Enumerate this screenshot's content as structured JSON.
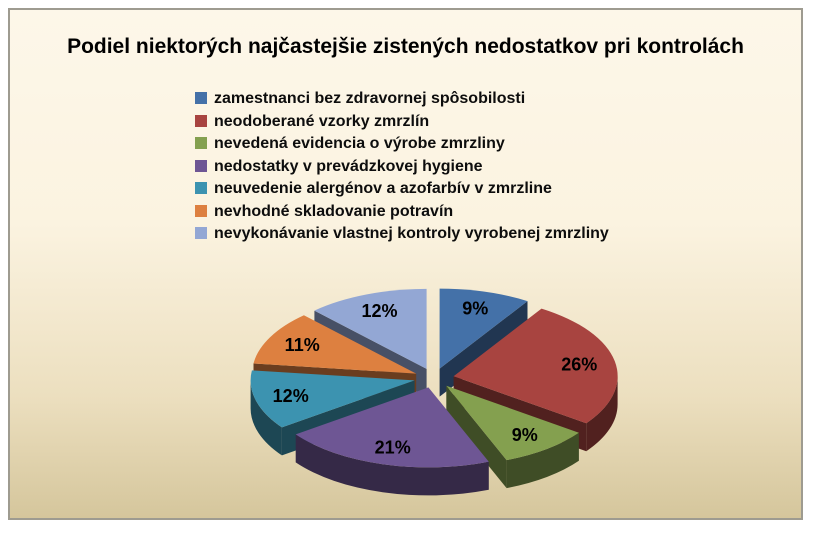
{
  "chart_data": {
    "type": "pie",
    "style": "3d-exploded",
    "title": "Podiel niektorých najčastejšie zistených nedostatkov pri kontrolách",
    "legend_position": "top-left-below-title",
    "slices": [
      {
        "label": "zamestnanci bez zdravornej spôsobilosti",
        "value": 9,
        "pct_label": "9%",
        "color": "#4471A8"
      },
      {
        "label": "neodoberané vzorky zmrzlín",
        "value": 26,
        "pct_label": "26%",
        "color": "#A84440"
      },
      {
        "label": "nevedená evidencia o výrobe zmrzliny",
        "value": 9,
        "pct_label": "9%",
        "color": "#84A04F"
      },
      {
        "label": "nedostatky v prevádzkovej hygiene",
        "value": 21,
        "pct_label": "21%",
        "color": "#6E5694"
      },
      {
        "label": "neuvedenie alergénov a azofarbív v zmrzline",
        "value": 12,
        "pct_label": "12%",
        "color": "#3C93B0"
      },
      {
        "label": "nevhodné skladovanie potravín",
        "value": 11,
        "pct_label": "11%",
        "color": "#DD8040"
      },
      {
        "label": "nevykonávanie vlastnej kontroly vyrobenej zmrzliny",
        "value": 12,
        "pct_label": "12%",
        "color": "#93A7D4"
      }
    ]
  },
  "colors": {
    "background_top": "#FDF7E9",
    "background_bottom": "#D5C69C",
    "frame_border": "#9E9B90",
    "text": "#000000"
  }
}
